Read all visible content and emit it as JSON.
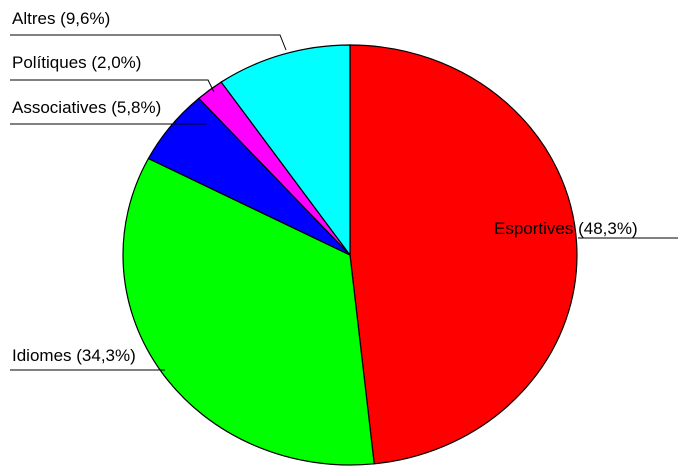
{
  "chart_data": {
    "type": "pie",
    "title": "",
    "slices": [
      {
        "label": "Esportives (48,3%)",
        "value": 48.3,
        "color": "#ff0000"
      },
      {
        "label": "Idiomes (34,3%)",
        "value": 34.3,
        "color": "#00ff00"
      },
      {
        "label": "Associatives (5,8%)",
        "value": 5.8,
        "color": "#0000ff"
      },
      {
        "label": "Polítiques (2,0%)",
        "value": 2.0,
        "color": "#ff00ff"
      },
      {
        "label": "Altres (9,6%)",
        "value": 9.6,
        "color": "#00ffff"
      }
    ],
    "start": "12 o'clock",
    "direction": "clockwise"
  }
}
